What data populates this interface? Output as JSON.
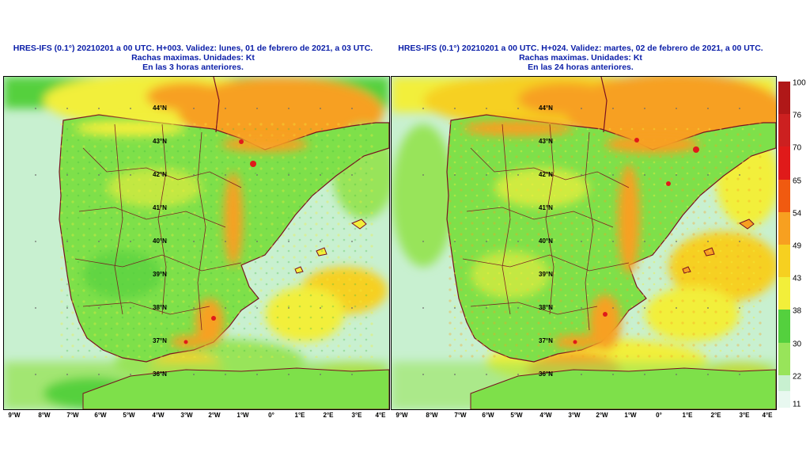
{
  "panels": [
    {
      "title_line1": "HRES-IFS (0.1°) 20210201 a 00 UTC.  H+003. Validez: lunes, 01 de febrero de 2021,  a  03 UTC.",
      "title_line2": "Rachas maximas. Unidades: Kt",
      "title_line3": "En las 3 horas anteriores."
    },
    {
      "title_line1": "HRES-IFS (0.1°) 20210201 a 00 UTC.  H+024. Validez: martes, 02 de febrero de 2021,  a  00 UTC.",
      "title_line2": "Rachas maximas. Unidades: Kt",
      "title_line3": "En las 24 horas anteriores."
    }
  ],
  "latitude_labels": [
    "44°N",
    "43°N",
    "42°N",
    "41°N",
    "40°N",
    "39°N",
    "38°N",
    "37°N",
    "36°N"
  ],
  "longitude_labels": [
    "9°W",
    "8°W",
    "7°W",
    "6°W",
    "5°W",
    "4°W",
    "3°W",
    "2°W",
    "1°W",
    "0°",
    "1°E",
    "2°E",
    "3°E",
    "4°E"
  ],
  "legend": {
    "ticks": [
      "100",
      "76",
      "70",
      "65",
      "54",
      "49",
      "43",
      "38",
      "30",
      "22",
      "11"
    ],
    "colors": [
      "#b01818",
      "#cc2020",
      "#e01a1a",
      "#f05a10",
      "#f7a020",
      "#f6d020",
      "#f2ef3a",
      "#54d03e",
      "#98e45a",
      "#c8f0d0",
      "#e8f8f0"
    ]
  },
  "colors": {
    "title": "#0a1ea8",
    "border": "#7a1020",
    "sea_pale": "#c8f0d0",
    "land_green": "#7ee04a",
    "yellow": "#f2ef3a",
    "orange": "#f7a020",
    "red": "#e01a1a"
  }
}
